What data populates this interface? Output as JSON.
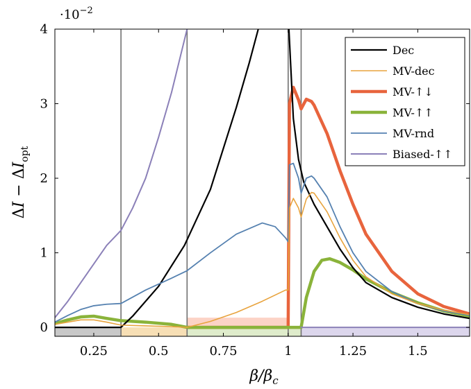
{
  "chart_data": {
    "type": "line",
    "xlabel": "β/β_c",
    "ylabel": "ΔI − ΔI_opt",
    "y_multiplier": "·10^−2",
    "xlim": [
      0.1,
      1.7
    ],
    "ylim": [
      -0.12,
      4.0
    ],
    "y_scale": 0.01,
    "xticks": [
      "0.25",
      "0.5",
      "0.75",
      "1",
      "1.25",
      "1.5"
    ],
    "yticks": [
      "0",
      "1",
      "2",
      "3",
      "4"
    ],
    "grid": false,
    "legend_position": "top-right",
    "vertical_lines_x": [
      0.355,
      0.61,
      1.0,
      1.05
    ],
    "shaded_regions": [
      {
        "x": [
          0.1,
          0.355
        ],
        "color": "#c8c8c8"
      },
      {
        "x": [
          0.355,
          0.61
        ],
        "color": "#f7dfb5"
      },
      {
        "x": [
          0.61,
          1.0
        ],
        "color": "#dfeccb",
        "top_color": "#fcd3c6"
      },
      {
        "x": [
          1.0,
          1.05
        ],
        "color": "#dfeccb"
      },
      {
        "x": [
          1.05,
          1.7
        ],
        "color": "#dcd6ec"
      }
    ],
    "series": [
      {
        "name": "Dec",
        "color": "#000000",
        "width": 2.2,
        "x": [
          0.1,
          0.355,
          0.4,
          0.5,
          0.6,
          0.7,
          0.8,
          0.85,
          0.9,
          null,
          1.0,
          1.01,
          1.02,
          1.04,
          1.06,
          1.1,
          1.15,
          1.2,
          1.25,
          1.3,
          1.4,
          1.5,
          1.6,
          1.7
        ],
        "y": [
          0.0,
          0.0,
          0.15,
          0.55,
          1.1,
          1.85,
          2.95,
          3.55,
          4.2,
          null,
          4.2,
          3.5,
          2.8,
          2.25,
          1.95,
          1.65,
          1.35,
          1.05,
          0.8,
          0.6,
          0.4,
          0.27,
          0.18,
          0.12
        ]
      },
      {
        "name": "MV-dec",
        "color": "#e8a33d",
        "width": 1.6,
        "x": [
          0.1,
          0.15,
          0.2,
          0.25,
          0.3,
          0.355,
          0.45,
          0.55,
          0.61,
          0.7,
          0.8,
          0.9,
          0.99,
          1.0,
          1.005,
          1.02,
          1.04,
          1.05,
          1.07,
          1.09,
          1.1,
          1.15,
          1.2,
          1.25,
          1.3,
          1.4,
          1.5,
          1.6,
          1.7
        ],
        "y": [
          0.04,
          0.07,
          0.1,
          0.1,
          0.07,
          0.03,
          0.02,
          0.01,
          0.0,
          0.08,
          0.2,
          0.35,
          0.5,
          0.5,
          1.6,
          1.73,
          1.6,
          1.48,
          1.72,
          1.81,
          1.8,
          1.55,
          1.2,
          0.9,
          0.68,
          0.45,
          0.32,
          0.23,
          0.17
        ]
      },
      {
        "name": "MV-↑↓",
        "color": "#e8643d",
        "width": 4.5,
        "x": [
          0.61,
          0.99,
          1.0,
          1.005,
          1.02,
          1.04,
          1.05,
          1.07,
          1.09,
          1.1,
          1.15,
          1.2,
          1.25,
          1.3,
          1.4,
          1.5,
          1.6,
          1.7
        ],
        "y": [
          0.0,
          0.0,
          0.0,
          3.0,
          3.22,
          3.05,
          2.93,
          3.06,
          3.03,
          2.98,
          2.6,
          2.1,
          1.65,
          1.25,
          0.75,
          0.45,
          0.28,
          0.18
        ]
      },
      {
        "name": "MV-↑↑",
        "color": "#8ab33a",
        "width": 4.5,
        "x": [
          0.1,
          0.15,
          0.2,
          0.25,
          0.3,
          0.355,
          0.45,
          0.55,
          0.61,
          0.8,
          1.0,
          1.05,
          1.07,
          1.1,
          1.13,
          1.16,
          1.2,
          1.25,
          1.3,
          1.4,
          1.5,
          1.6,
          1.7
        ],
        "y": [
          0.05,
          0.1,
          0.14,
          0.15,
          0.12,
          0.09,
          0.07,
          0.04,
          0.0,
          0.0,
          0.0,
          0.0,
          0.4,
          0.75,
          0.9,
          0.92,
          0.87,
          0.77,
          0.65,
          0.47,
          0.33,
          0.22,
          0.15
        ]
      },
      {
        "name": "MV-rnd",
        "color": "#5581b0",
        "width": 1.8,
        "x": [
          0.1,
          0.15,
          0.2,
          0.25,
          0.3,
          0.355,
          0.45,
          0.55,
          0.61,
          0.7,
          0.8,
          0.9,
          0.95,
          0.99,
          1.0,
          1.005,
          1.02,
          1.04,
          1.05,
          1.07,
          1.09,
          1.1,
          1.15,
          1.2,
          1.25,
          1.3,
          1.4,
          1.5,
          1.6,
          1.7
        ],
        "y": [
          0.07,
          0.16,
          0.24,
          0.29,
          0.31,
          0.32,
          0.5,
          0.66,
          0.76,
          1.0,
          1.25,
          1.4,
          1.35,
          1.2,
          1.15,
          2.18,
          2.2,
          2.0,
          1.8,
          2.0,
          2.03,
          2.0,
          1.75,
          1.35,
          1.0,
          0.75,
          0.48,
          0.32,
          0.22,
          0.16
        ]
      },
      {
        "name": "Biased-↑↑",
        "color": "#8b80b8",
        "width": 2.0,
        "x": [
          0.1,
          0.15,
          0.2,
          0.25,
          0.3,
          0.355,
          0.4,
          0.45,
          0.5,
          0.55,
          0.61,
          null,
          1.05,
          1.7
        ],
        "y": [
          0.13,
          0.35,
          0.6,
          0.85,
          1.1,
          1.3,
          1.6,
          2.0,
          2.55,
          3.15,
          4.0,
          null,
          0.0,
          0.0
        ]
      }
    ]
  }
}
